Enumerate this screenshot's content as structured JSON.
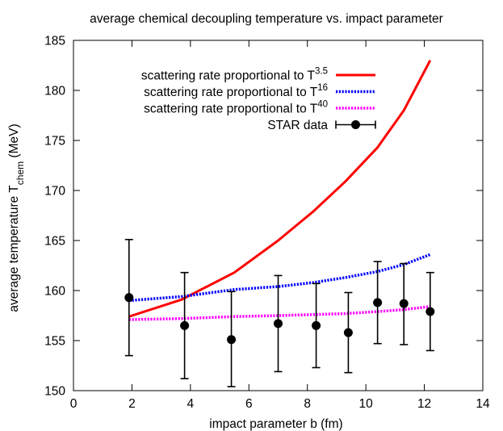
{
  "chart_data": {
    "type": "line",
    "title": "average chemical decoupling temperature vs. impact parameter",
    "xlabel": "impact parameter b (fm)",
    "ylabel_main": "average temperature T",
    "ylabel_sub": "chem",
    "ylabel_unit": " (MeV)",
    "xlim": [
      0,
      14
    ],
    "ylim": [
      150,
      185
    ],
    "xticks": [
      0,
      2,
      4,
      6,
      8,
      10,
      12,
      14
    ],
    "yticks": [
      150,
      155,
      160,
      165,
      170,
      175,
      180,
      185
    ],
    "grid": false,
    "legend_position": "top-right",
    "series": [
      {
        "label_base": "scattering rate proportional to T",
        "label_exp": "3.5",
        "color": "#ff0000",
        "style": "solid",
        "x": [
          1.9,
          3.7,
          5.5,
          7.0,
          8.2,
          9.3,
          10.4,
          11.3,
          12.2
        ],
        "y": [
          157.4,
          159.1,
          161.8,
          165.0,
          167.9,
          170.9,
          174.3,
          178.0,
          183.0
        ]
      },
      {
        "label_base": "scattering rate proportional to T",
        "label_exp": "16",
        "color": "#0000ff",
        "style": "dotted",
        "x": [
          1.9,
          3.7,
          5.5,
          7.0,
          8.2,
          9.3,
          10.4,
          11.3,
          12.2
        ],
        "y": [
          159.0,
          159.4,
          160.1,
          160.4,
          160.8,
          161.3,
          161.9,
          162.6,
          163.6
        ]
      },
      {
        "label_base": "scattering rate proportional to T",
        "label_exp": "40",
        "color": "#ff00ff",
        "style": "dotted",
        "x": [
          1.9,
          3.7,
          5.5,
          7.0,
          8.2,
          9.3,
          10.4,
          11.3,
          12.2
        ],
        "y": [
          157.1,
          157.2,
          157.4,
          157.5,
          157.6,
          157.7,
          157.9,
          158.1,
          158.4
        ]
      },
      {
        "label_base": "STAR data",
        "label_exp": "",
        "color": "#000000",
        "style": "points",
        "x": [
          1.9,
          3.8,
          5.4,
          7.0,
          8.3,
          9.4,
          10.4,
          11.3,
          12.2
        ],
        "y": [
          159.3,
          156.5,
          155.1,
          156.7,
          156.5,
          155.8,
          158.8,
          158.7,
          157.9
        ],
        "yerr_low": [
          153.5,
          151.2,
          150.4,
          151.9,
          152.3,
          151.8,
          154.7,
          154.6,
          154.0
        ],
        "yerr_high": [
          165.1,
          161.8,
          159.9,
          161.5,
          160.7,
          159.8,
          162.9,
          162.7,
          161.8
        ]
      }
    ]
  }
}
